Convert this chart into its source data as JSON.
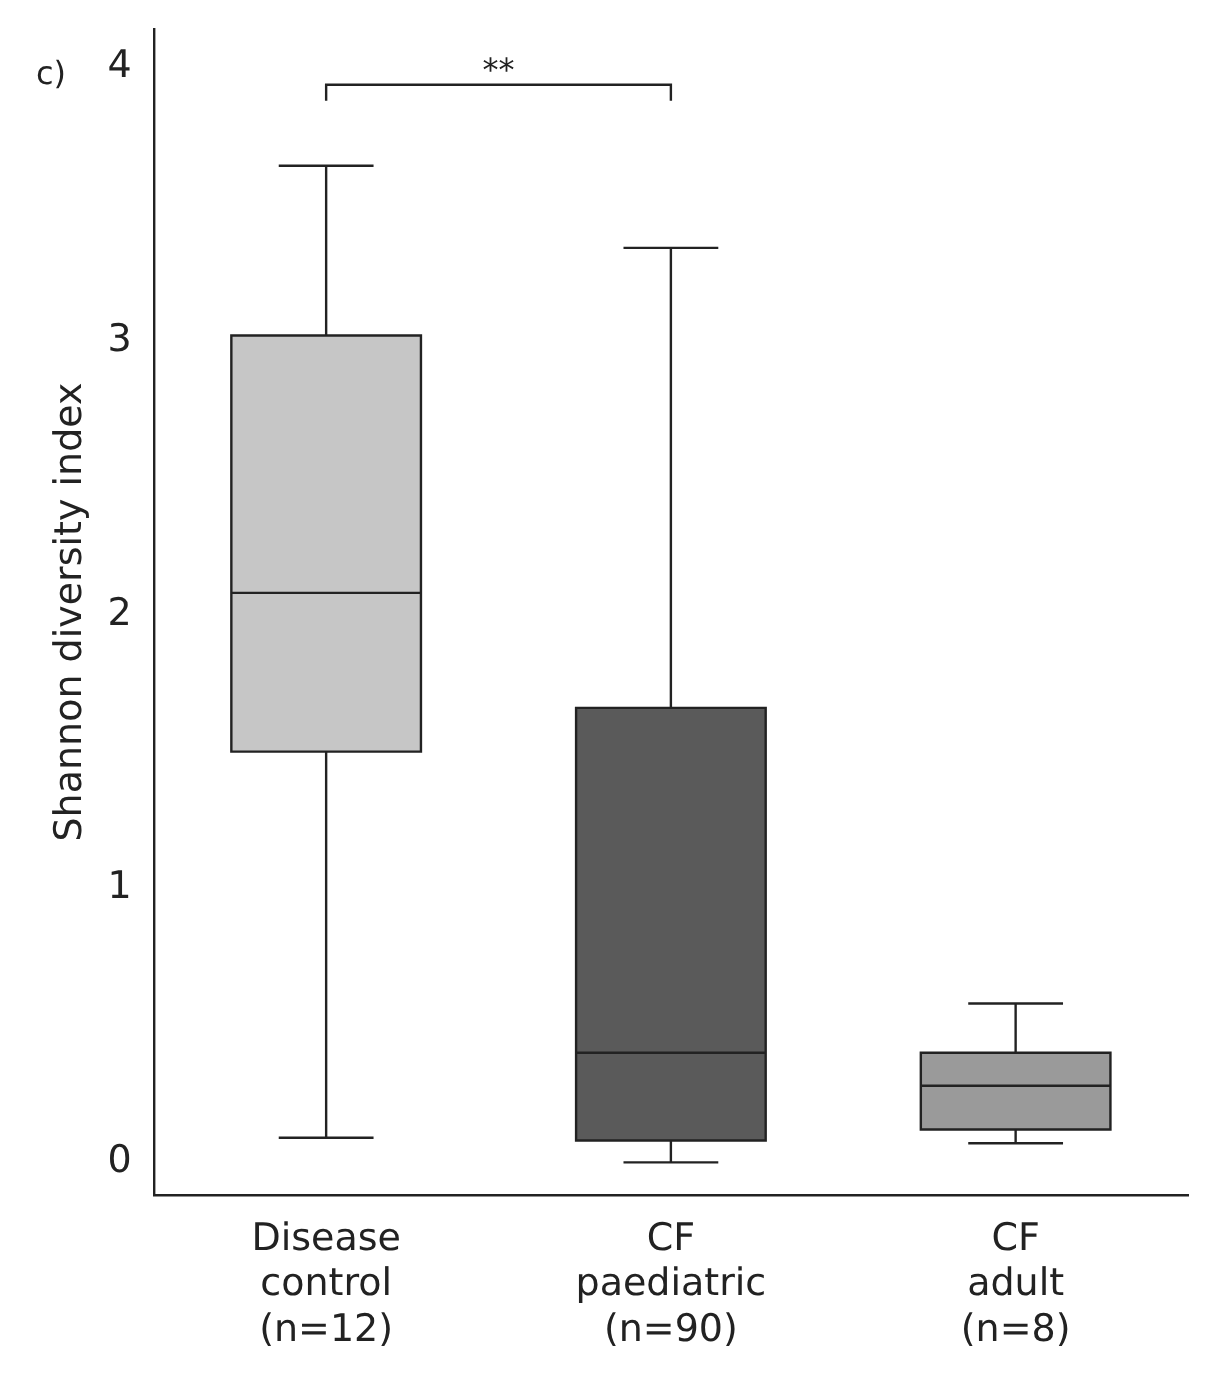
{
  "chart_data": {
    "type": "box",
    "ylabel": "Shannon diversity index",
    "categories": [
      "Disease\ncontrol\n(n=12)",
      "CF\npaediatric\n(n=90)",
      "CF\nadult\n(n=8)"
    ],
    "colors": [
      "#c6c6c6",
      "#5a5a5a",
      "#9a9a9a"
    ],
    "boxes": [
      {
        "low": 0.09,
        "q1": 1.5,
        "median": 2.08,
        "q3": 3.02,
        "high": 3.64
      },
      {
        "low": 0.0,
        "q1": 0.08,
        "median": 0.4,
        "q3": 1.66,
        "high": 3.34
      },
      {
        "low": 0.07,
        "q1": 0.12,
        "median": 0.28,
        "q3": 0.4,
        "high": 0.58
      }
    ],
    "ylim": [
      -0.12,
      4.14
    ],
    "yticks": [
      0,
      1,
      2,
      3,
      4
    ],
    "grid": false,
    "legend": false,
    "annotations": [
      "c)",
      "**"
    ]
  }
}
